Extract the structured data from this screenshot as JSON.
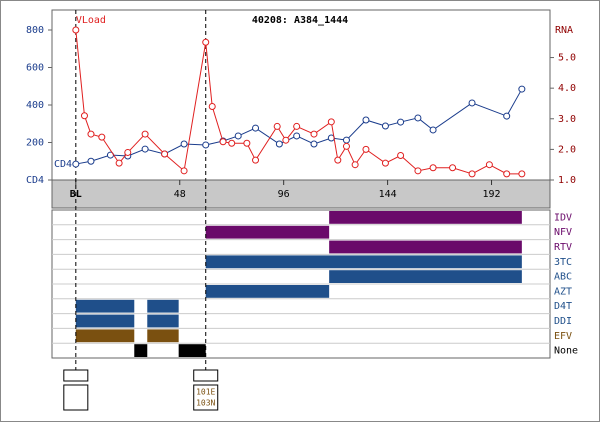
{
  "chart_data": {
    "type": "line",
    "title": "40208: A384_1444",
    "y2label": "RNA",
    "xlim": [
      -11,
      219
    ],
    "xticks": [
      {
        "value": 0,
        "label": "BL"
      },
      48,
      96,
      144,
      192
    ],
    "ylim": [
      0,
      800
    ],
    "yticks": [
      {
        "value": 0,
        "label": "CD4"
      },
      200,
      400,
      600,
      800
    ],
    "y2lim": [
      1,
      5.9
    ],
    "y2ticks": [
      {
        "value": 1,
        "label": "1.0"
      },
      {
        "value": 2,
        "label": "2.0"
      },
      {
        "value": 3,
        "label": "3.0"
      },
      {
        "value": 4,
        "label": "4.0"
      },
      {
        "value": 5,
        "label": "5.0"
      }
    ],
    "series": [
      {
        "name": "CD4",
        "color": "#1a3c8c",
        "axis": "y",
        "x": [
          0,
          7,
          16,
          24,
          32,
          41,
          50,
          60,
          68,
          75,
          83,
          94,
          102,
          110,
          118,
          125,
          134,
          143,
          150,
          158,
          165,
          183,
          199,
          206
        ],
        "values": [
          85,
          100,
          133,
          128,
          165,
          139,
          192,
          187,
          208,
          235,
          277,
          192,
          235,
          192,
          224,
          213,
          320,
          288,
          309,
          331,
          267,
          411,
          341,
          485
        ]
      },
      {
        "name": "VLoad",
        "color": "#e02020",
        "axis": "y2",
        "x": [
          0,
          4,
          7,
          12,
          20,
          24,
          32,
          41,
          50,
          60,
          63,
          68,
          72,
          79,
          83,
          93,
          97,
          102,
          110,
          118,
          121,
          125,
          129,
          134,
          143,
          150,
          158,
          165,
          174,
          183,
          191,
          199,
          206
        ],
        "values": [
          5.9,
          3.1,
          2.5,
          2.4,
          1.55,
          1.9,
          2.5,
          1.85,
          1.3,
          5.5,
          3.4,
          2.25,
          2.2,
          2.2,
          1.65,
          2.75,
          2.3,
          2.75,
          2.5,
          2.9,
          1.65,
          2.1,
          1.5,
          2.0,
          1.55,
          1.8,
          1.3,
          1.4,
          1.4,
          1.2,
          1.5,
          1.2,
          1.2
        ]
      }
    ],
    "markers_at": [
      0,
      60
    ],
    "drugs": [
      {
        "name": "IDV",
        "color": "#6a0a6a",
        "periods": [
          [
            117,
            206
          ]
        ]
      },
      {
        "name": "NFV",
        "color": "#6a0a6a",
        "periods": [
          [
            60,
            117
          ]
        ]
      },
      {
        "name": "RTV",
        "color": "#6a0a6a",
        "periods": [
          [
            117,
            206
          ]
        ]
      },
      {
        "name": "3TC",
        "color": "#1f4f8a",
        "periods": [
          [
            60,
            206
          ]
        ]
      },
      {
        "name": "ABC",
        "color": "#1f4f8a",
        "periods": [
          [
            117,
            206
          ]
        ]
      },
      {
        "name": "AZT",
        "color": "#1f4f8a",
        "periods": [
          [
            60,
            117
          ]
        ]
      },
      {
        "name": "D4T",
        "color": "#1f4f8a",
        "periods": [
          [
            0,
            27
          ],
          [
            33,
            47.5
          ]
        ]
      },
      {
        "name": "DDI",
        "color": "#1f4f8a",
        "periods": [
          [
            0,
            27
          ],
          [
            33,
            47.5
          ]
        ]
      },
      {
        "name": "EFV",
        "color": "#7a5010",
        "periods": [
          [
            0,
            27
          ],
          [
            33,
            47.5
          ]
        ]
      },
      {
        "name": "None",
        "color": "#000000",
        "periods": [
          [
            27,
            33
          ],
          [
            47.5,
            60
          ]
        ]
      }
    ],
    "genotypes": [
      {
        "week": 0,
        "mutations": []
      },
      {
        "week": 60,
        "mutations": [
          "101E",
          "103N"
        ]
      }
    ]
  }
}
